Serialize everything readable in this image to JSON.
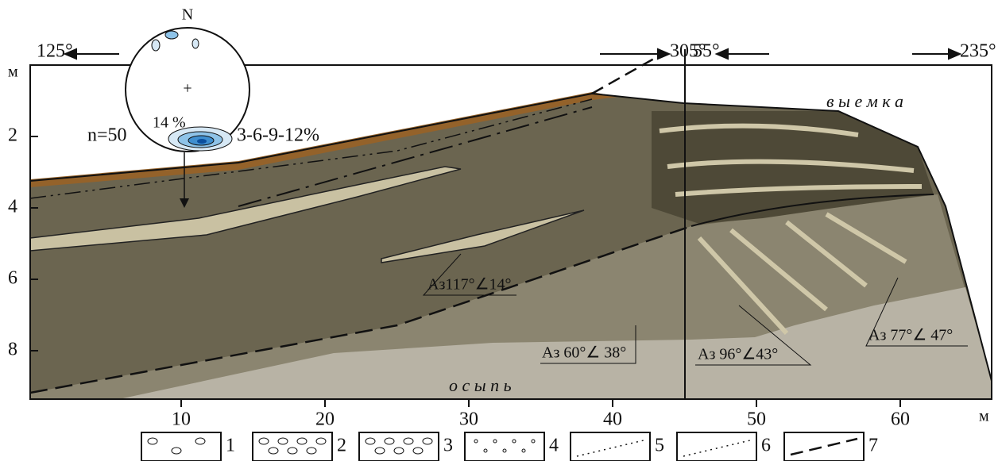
{
  "compass": {
    "north": "N",
    "count": "n=50",
    "maximum": "14 %",
    "contours": "3-6-9-12%"
  },
  "directions": [
    "125°",
    "305°",
    "55°",
    "235°"
  ],
  "y_axis": {
    "unit": "м",
    "ticks": [
      2,
      4,
      6,
      8
    ]
  },
  "x_axis": {
    "unit": "м",
    "ticks": [
      10,
      20,
      30,
      40,
      50,
      60
    ]
  },
  "labels": {
    "excavation": "в ы е м к а",
    "scree": "о с ы п ь"
  },
  "measurements": [
    "Аз117°∠14°",
    "Аз 60°∠ 38°",
    "Аз 96°∠43°",
    "Аз 77°∠ 47°"
  ],
  "legend": [
    "1",
    "2",
    "3",
    "4",
    "5",
    "6",
    "7"
  ]
}
